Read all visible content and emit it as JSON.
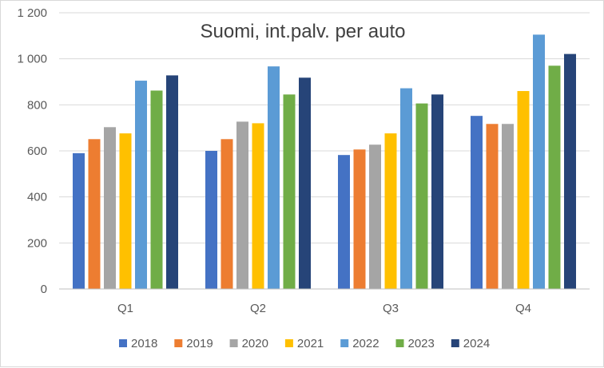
{
  "chart_data": {
    "type": "bar",
    "title": "Suomi, int.palv. per auto",
    "xlabel": "",
    "ylabel": "",
    "categories": [
      "Q1",
      "Q2",
      "Q3",
      "Q4"
    ],
    "ylim": [
      0,
      1200
    ],
    "yticks": [
      0,
      200,
      400,
      600,
      800,
      1000,
      1200
    ],
    "ytick_labels": [
      "0",
      "200",
      "400",
      "600",
      "800",
      "1 000",
      "1 200"
    ],
    "grid": true,
    "legend_position": "bottom",
    "series": [
      {
        "name": "2018",
        "color": "#4472C4",
        "values": [
          590,
          600,
          582,
          752
        ]
      },
      {
        "name": "2019",
        "color": "#ED7D31",
        "values": [
          651,
          651,
          606,
          717
        ]
      },
      {
        "name": "2020",
        "color": "#A5A5A5",
        "values": [
          703,
          727,
          627,
          717
        ]
      },
      {
        "name": "2021",
        "color": "#FFC000",
        "values": [
          676,
          720,
          676,
          860
        ]
      },
      {
        "name": "2022",
        "color": "#5B9BD5",
        "values": [
          905,
          967,
          872,
          1105
        ]
      },
      {
        "name": "2023",
        "color": "#70AD47",
        "values": [
          862,
          845,
          806,
          970
        ]
      },
      {
        "name": "2024",
        "color": "#264478",
        "values": [
          928,
          918,
          845,
          1021
        ]
      }
    ]
  }
}
